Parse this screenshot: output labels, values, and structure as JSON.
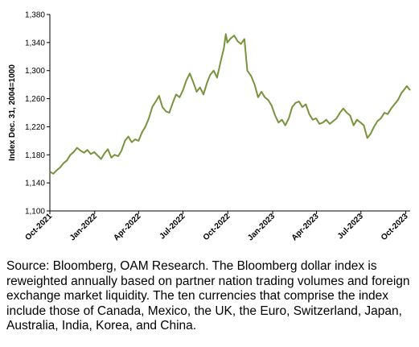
{
  "chart_data": {
    "type": "line",
    "ylabel": "Index Dec. 31, 2004=1000",
    "ylim": [
      1100,
      1380
    ],
    "yticks": [
      "1,100",
      "1,140",
      "1,180",
      "1,220",
      "1,260",
      "1,300",
      "1,340",
      "1,380"
    ],
    "yticks_values": [
      1100,
      1140,
      1180,
      1220,
      1260,
      1300,
      1340,
      1380
    ],
    "xlim": [
      "2021-10-01",
      "2023-10-10"
    ],
    "xticks": [
      "Oct-2021",
      "Jan-2022",
      "Apr-2022",
      "Jul-2022",
      "Oct-2022",
      "Jan-2023",
      "Apr-2023",
      "Jul-2023",
      "Oct-2023"
    ],
    "xticks_dates": [
      "2021-10-01",
      "2022-01-01",
      "2022-04-01",
      "2022-07-01",
      "2022-10-01",
      "2023-01-01",
      "2023-04-01",
      "2023-07-01",
      "2023-10-01"
    ],
    "grid": false,
    "series": [
      {
        "color": "#77933c",
        "points": [
          [
            "2021-10-01",
            1156
          ],
          [
            "2021-10-08",
            1153
          ],
          [
            "2021-10-15",
            1158
          ],
          [
            "2021-10-22",
            1162
          ],
          [
            "2021-10-29",
            1168
          ],
          [
            "2021-11-05",
            1172
          ],
          [
            "2021-11-12",
            1180
          ],
          [
            "2021-11-19",
            1184
          ],
          [
            "2021-11-26",
            1190
          ],
          [
            "2021-12-03",
            1186
          ],
          [
            "2021-12-10",
            1183
          ],
          [
            "2021-12-17",
            1187
          ],
          [
            "2021-12-24",
            1181
          ],
          [
            "2021-12-31",
            1184
          ],
          [
            "2022-01-07",
            1179
          ],
          [
            "2022-01-14",
            1174
          ],
          [
            "2022-01-21",
            1182
          ],
          [
            "2022-01-28",
            1188
          ],
          [
            "2022-02-04",
            1176
          ],
          [
            "2022-02-11",
            1180
          ],
          [
            "2022-02-18",
            1178
          ],
          [
            "2022-02-25",
            1186
          ],
          [
            "2022-03-04",
            1200
          ],
          [
            "2022-03-11",
            1206
          ],
          [
            "2022-03-18",
            1198
          ],
          [
            "2022-03-25",
            1202
          ],
          [
            "2022-04-01",
            1200
          ],
          [
            "2022-04-08",
            1212
          ],
          [
            "2022-04-15",
            1220
          ],
          [
            "2022-04-22",
            1232
          ],
          [
            "2022-04-29",
            1248
          ],
          [
            "2022-05-06",
            1256
          ],
          [
            "2022-05-13",
            1264
          ],
          [
            "2022-05-20",
            1248
          ],
          [
            "2022-05-27",
            1242
          ],
          [
            "2022-06-03",
            1240
          ],
          [
            "2022-06-10",
            1254
          ],
          [
            "2022-06-17",
            1266
          ],
          [
            "2022-06-24",
            1262
          ],
          [
            "2022-07-01",
            1272
          ],
          [
            "2022-07-08",
            1286
          ],
          [
            "2022-07-15",
            1296
          ],
          [
            "2022-07-22",
            1284
          ],
          [
            "2022-07-29",
            1270
          ],
          [
            "2022-08-05",
            1276
          ],
          [
            "2022-08-12",
            1266
          ],
          [
            "2022-08-19",
            1282
          ],
          [
            "2022-08-26",
            1294
          ],
          [
            "2022-09-02",
            1300
          ],
          [
            "2022-09-09",
            1290
          ],
          [
            "2022-09-16",
            1312
          ],
          [
            "2022-09-23",
            1332
          ],
          [
            "2022-09-27",
            1352
          ],
          [
            "2022-09-30",
            1340
          ],
          [
            "2022-10-07",
            1346
          ],
          [
            "2022-10-14",
            1350
          ],
          [
            "2022-10-21",
            1342
          ],
          [
            "2022-10-28",
            1338
          ],
          [
            "2022-11-04",
            1345
          ],
          [
            "2022-11-10",
            1300
          ],
          [
            "2022-11-18",
            1292
          ],
          [
            "2022-11-25",
            1280
          ],
          [
            "2022-12-02",
            1262
          ],
          [
            "2022-12-09",
            1270
          ],
          [
            "2022-12-16",
            1262
          ],
          [
            "2022-12-23",
            1258
          ],
          [
            "2022-12-30",
            1250
          ],
          [
            "2023-01-06",
            1236
          ],
          [
            "2023-01-13",
            1226
          ],
          [
            "2023-01-20",
            1230
          ],
          [
            "2023-01-27",
            1222
          ],
          [
            "2023-02-03",
            1232
          ],
          [
            "2023-02-10",
            1248
          ],
          [
            "2023-02-17",
            1254
          ],
          [
            "2023-02-24",
            1256
          ],
          [
            "2023-03-03",
            1248
          ],
          [
            "2023-03-10",
            1252
          ],
          [
            "2023-03-17",
            1238
          ],
          [
            "2023-03-24",
            1230
          ],
          [
            "2023-03-31",
            1232
          ],
          [
            "2023-04-07",
            1224
          ],
          [
            "2023-04-14",
            1226
          ],
          [
            "2023-04-21",
            1230
          ],
          [
            "2023-04-28",
            1224
          ],
          [
            "2023-05-05",
            1228
          ],
          [
            "2023-05-12",
            1232
          ],
          [
            "2023-05-19",
            1240
          ],
          [
            "2023-05-26",
            1246
          ],
          [
            "2023-06-02",
            1240
          ],
          [
            "2023-06-09",
            1236
          ],
          [
            "2023-06-16",
            1222
          ],
          [
            "2023-06-23",
            1230
          ],
          [
            "2023-06-30",
            1226
          ],
          [
            "2023-07-07",
            1222
          ],
          [
            "2023-07-14",
            1204
          ],
          [
            "2023-07-21",
            1210
          ],
          [
            "2023-07-28",
            1220
          ],
          [
            "2023-08-04",
            1228
          ],
          [
            "2023-08-11",
            1232
          ],
          [
            "2023-08-18",
            1240
          ],
          [
            "2023-08-25",
            1238
          ],
          [
            "2023-09-01",
            1246
          ],
          [
            "2023-09-08",
            1252
          ],
          [
            "2023-09-15",
            1258
          ],
          [
            "2023-09-22",
            1268
          ],
          [
            "2023-09-29",
            1274
          ],
          [
            "2023-10-03",
            1278
          ],
          [
            "2023-10-10",
            1272
          ]
        ]
      }
    ]
  },
  "caption": "Source: Bloomberg, OAM Research. The Bloomberg dollar index is reweighted annually based on partner nation trading volumes and foreign exchange market liquidity.  The ten currencies that comprise the index include those of Canada, Mexico, the UK, the Euro, Switzerland, Japan, Australia, India, Korea, and China."
}
